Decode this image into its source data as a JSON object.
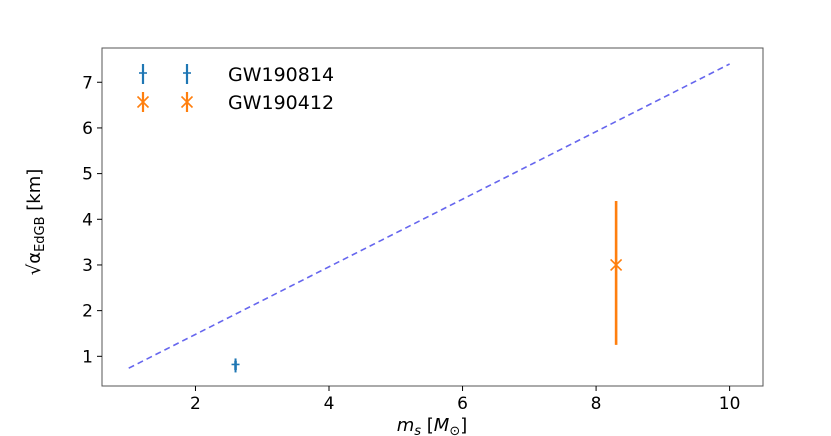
{
  "chart_data": {
    "type": "scatter",
    "xlabel": "m_s [M_⊙]",
    "ylabel": "√α_EdGB [km]",
    "xlim": [
      0.6,
      10.5
    ],
    "ylim": [
      0.35,
      7.75
    ],
    "x_ticks": [
      2,
      4,
      6,
      8,
      10
    ],
    "y_ticks": [
      1,
      2,
      3,
      4,
      5,
      6,
      7
    ],
    "grid": false,
    "legend_position": "top-left",
    "series": [
      {
        "name": "GW190814",
        "marker": "|",
        "color": "#1f77b4",
        "points": [
          {
            "x": 2.6,
            "y": 0.8,
            "yerr_low": 0.7,
            "yerr_high": 0.9
          }
        ]
      },
      {
        "name": "GW190412",
        "marker": "x",
        "color": "#ff7f0e",
        "points": [
          {
            "x": 8.3,
            "y": 3.0,
            "yerr_low": 1.25,
            "yerr_high": 4.4
          }
        ]
      }
    ],
    "reference_line": {
      "style": "dashed",
      "color": "#6666ee",
      "x": [
        1.0,
        10.0
      ],
      "y": [
        0.74,
        7.4
      ]
    }
  }
}
